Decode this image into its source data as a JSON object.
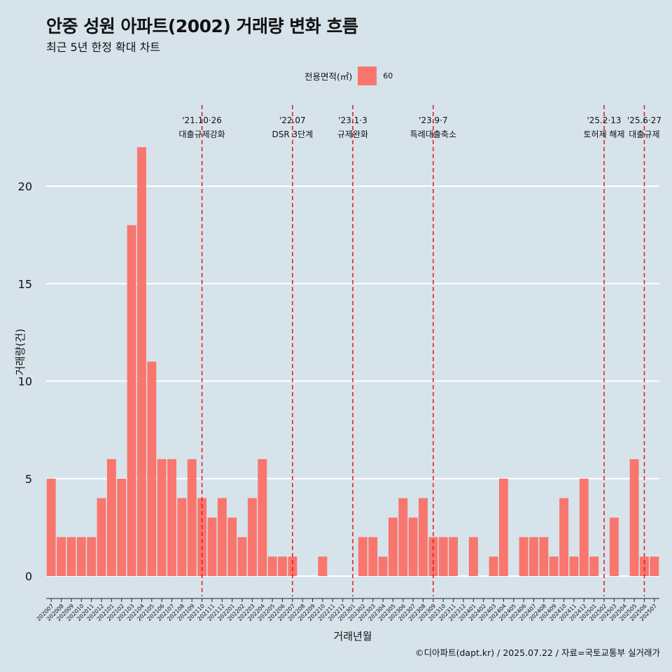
{
  "title": "안중 성원 아파트(2002) 거래량 변화 흐름",
  "subtitle": "최근 5년 한정 확대 차트",
  "legend": {
    "title": "전용면적(㎡)",
    "item": "60",
    "color": "#f8766d"
  },
  "caption": "©디아파트(dapt.kr) / 2025.07.22 / 자료=국토교통부 실거래가",
  "chart_data": {
    "type": "bar",
    "xlabel": "거래년월",
    "ylabel": "거래량(건)",
    "ylim": [
      0,
      22
    ],
    "yticks": [
      0,
      5,
      10,
      15,
      20
    ],
    "grid": true,
    "legend_position": "top",
    "bar_color": "#f8766d",
    "categories": [
      "202007",
      "202008",
      "202009",
      "202010",
      "202011",
      "202012",
      "202101",
      "202102",
      "202103",
      "202104",
      "202105",
      "202106",
      "202107",
      "202108",
      "202109",
      "202110",
      "202111",
      "202112",
      "202201",
      "202202",
      "202203",
      "202204",
      "202205",
      "202206",
      "202207",
      "202208",
      "202209",
      "202210",
      "202211",
      "202212",
      "202301",
      "202302",
      "202303",
      "202304",
      "202305",
      "202306",
      "202307",
      "202308",
      "202309",
      "202310",
      "202311",
      "202312",
      "202401",
      "202402",
      "202403",
      "202404",
      "202405",
      "202406",
      "202407",
      "202408",
      "202409",
      "202410",
      "202411",
      "202412",
      "202501",
      "202502",
      "202503",
      "202504",
      "202505",
      "202506",
      "202507"
    ],
    "series": [
      {
        "values": [
          5,
          2,
          2,
          2,
          2,
          4,
          6,
          5,
          18,
          22,
          11,
          6,
          6,
          4,
          6,
          4,
          3,
          4,
          3,
          2,
          4,
          6,
          1,
          1,
          1,
          0,
          0,
          1,
          0,
          0,
          0,
          2,
          2,
          1,
          3,
          4,
          3,
          4,
          2,
          2,
          2,
          0,
          2,
          0,
          1,
          5,
          0,
          2,
          2,
          2,
          1,
          4,
          1,
          5,
          1,
          0,
          3,
          0,
          6,
          1,
          1
        ]
      }
    ],
    "annotations": [
      {
        "at": "202110",
        "date": "'21.10·26",
        "label": "대출규제강화"
      },
      {
        "at": "202207",
        "date": "'22.07",
        "label": "DSR 3단계"
      },
      {
        "at": "202301",
        "date": "'23.1·3",
        "label": "규제완화"
      },
      {
        "at": "202309",
        "date": "'23.9·7",
        "label": "특례대출축소"
      },
      {
        "at": "202502",
        "date": "'25.2·13",
        "label": "토허제 해제"
      },
      {
        "at": "202506",
        "date": "'25.6·27",
        "label": "대출규제"
      }
    ],
    "annotation_line_color": "#e8141c"
  }
}
